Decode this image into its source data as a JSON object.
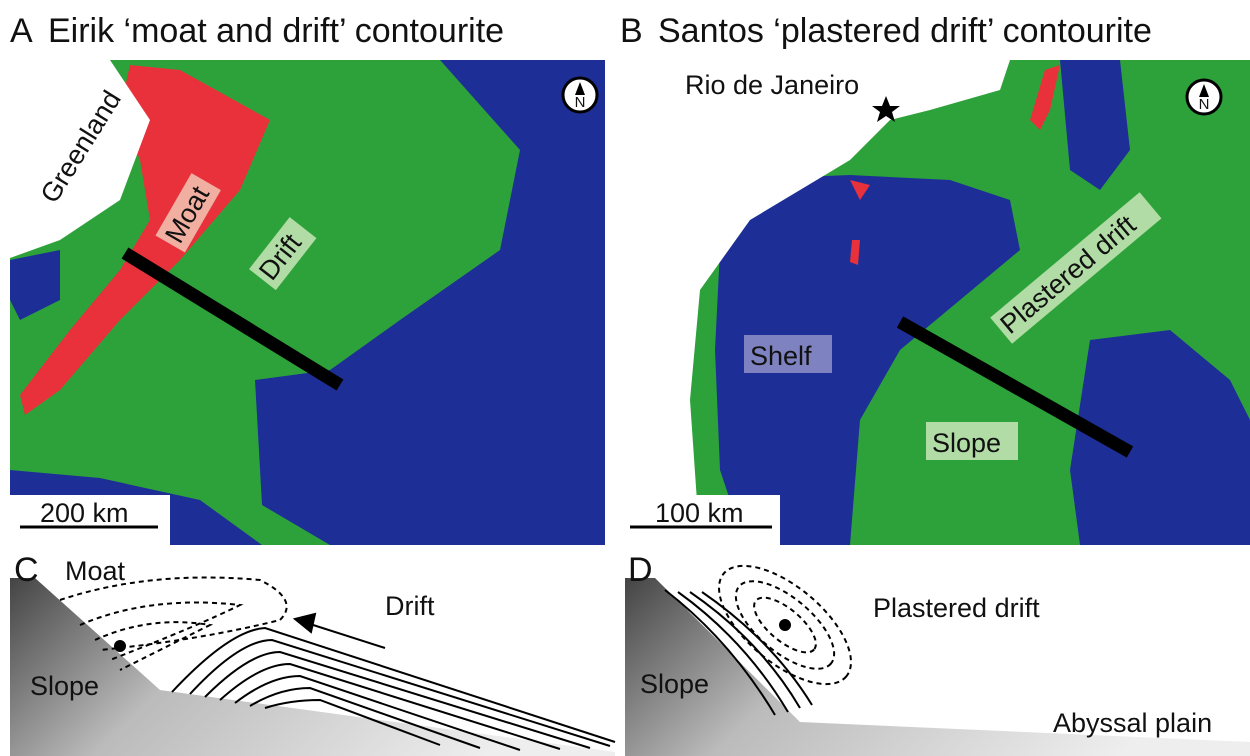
{
  "panels": [
    {
      "letter": "A",
      "title": "Eirik ‘moat and drift’ contourite",
      "labels": [
        "Greenland",
        "Moat",
        "Drift"
      ],
      "scale_bar": "200 km",
      "north": "N"
    },
    {
      "letter": "B",
      "title": "Santos ‘plastered drift’ contourite",
      "labels": [
        "Rio de Janeiro",
        "Shelf",
        "Plastered drift",
        "Slope"
      ],
      "scale_bar": "100 km",
      "north": "N"
    },
    {
      "letter": "C",
      "labels": [
        "Moat",
        "Drift",
        "Slope"
      ]
    },
    {
      "letter": "D",
      "labels": [
        "Plastered drift",
        "Slope",
        "Abyssal plain"
      ]
    }
  ]
}
